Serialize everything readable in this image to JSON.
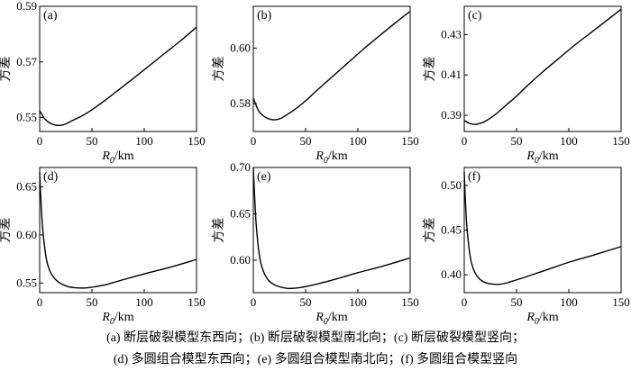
{
  "chart_data": [
    {
      "panel": "(a)",
      "type": "line",
      "ylabel": "方差",
      "xlabel": "R0/km",
      "xlabel_main": "R",
      "xlabel_sub": "0",
      "xlabel_unit": "/km",
      "xlim": [
        0,
        150
      ],
      "ylim": [
        0.545,
        0.59
      ],
      "xticks": [
        0,
        50,
        100,
        150
      ],
      "yticks": [
        0.55,
        0.57,
        0.59
      ],
      "yticklabels": [
        "0.55",
        "0.57",
        "0.59"
      ],
      "series": [
        {
          "x": [
            0,
            5,
            10,
            15,
            20,
            25,
            30,
            40,
            50,
            60,
            75,
            90,
            105,
            120,
            135,
            150
          ],
          "y": [
            0.5525,
            0.5495,
            0.548,
            0.5473,
            0.5472,
            0.5477,
            0.5487,
            0.5505,
            0.5528,
            0.5555,
            0.5598,
            0.5642,
            0.5687,
            0.5732,
            0.5777,
            0.5825
          ]
        }
      ]
    },
    {
      "panel": "(b)",
      "type": "line",
      "ylabel": "方差",
      "xlabel": "R0/km",
      "xlabel_main": "R",
      "xlabel_sub": "0",
      "xlabel_unit": "/km",
      "xlim": [
        0,
        150
      ],
      "ylim": [
        0.57,
        0.615
      ],
      "xticks": [
        0,
        50,
        100,
        150
      ],
      "yticks": [
        0.58,
        0.6
      ],
      "yticklabels": [
        "0.58",
        "0.60"
      ],
      "series": [
        {
          "x": [
            0,
            5,
            10,
            15,
            20,
            25,
            30,
            40,
            50,
            60,
            75,
            90,
            105,
            120,
            135,
            150
          ],
          "y": [
            0.582,
            0.5775,
            0.5755,
            0.5745,
            0.5742,
            0.5745,
            0.5755,
            0.578,
            0.581,
            0.5845,
            0.5895,
            0.5945,
            0.5995,
            0.6042,
            0.6088,
            0.6132
          ]
        }
      ]
    },
    {
      "panel": "(c)",
      "type": "line",
      "ylabel": "方差",
      "xlabel": "R0/km",
      "xlabel_main": "R",
      "xlabel_sub": "0",
      "xlabel_unit": "/km",
      "xlim": [
        0,
        150
      ],
      "ylim": [
        0.382,
        0.444
      ],
      "xticks": [
        0,
        50,
        100,
        150
      ],
      "yticks": [
        0.39,
        0.41,
        0.43
      ],
      "yticklabels": [
        "0.39",
        "0.41",
        "0.43"
      ],
      "series": [
        {
          "x": [
            0,
            5,
            10,
            15,
            20,
            30,
            40,
            50,
            60,
            75,
            90,
            105,
            120,
            135,
            150
          ],
          "y": [
            0.3875,
            0.386,
            0.3855,
            0.386,
            0.387,
            0.3905,
            0.395,
            0.3995,
            0.4045,
            0.4115,
            0.418,
            0.4245,
            0.4305,
            0.4365,
            0.4425
          ]
        }
      ]
    },
    {
      "panel": "(d)",
      "type": "line",
      "ylabel": "方差",
      "xlabel": "R0/km",
      "xlabel_main": "R",
      "xlabel_sub": "0",
      "xlabel_unit": "/km",
      "xlim": [
        0,
        150
      ],
      "ylim": [
        0.54,
        0.67
      ],
      "xticks": [
        0,
        50,
        100,
        150
      ],
      "yticks": [
        0.55,
        0.6,
        0.65
      ],
      "yticklabels": [
        "0.55",
        "0.60",
        "0.65"
      ],
      "series": [
        {
          "x": [
            0,
            1,
            2,
            3,
            5,
            7,
            10,
            14,
            18,
            22,
            28,
            35,
            45,
            60,
            80,
            100,
            125,
            150
          ],
          "y": [
            0.665,
            0.64,
            0.62,
            0.605,
            0.585,
            0.572,
            0.562,
            0.555,
            0.551,
            0.5485,
            0.546,
            0.545,
            0.545,
            0.5475,
            0.5535,
            0.5595,
            0.5665,
            0.5745
          ]
        }
      ]
    },
    {
      "panel": "(e)",
      "type": "line",
      "ylabel": "方差",
      "xlabel": "R0/km",
      "xlabel_main": "R",
      "xlabel_sub": "0",
      "xlabel_unit": "/km",
      "xlim": [
        0,
        150
      ],
      "ylim": [
        0.565,
        0.7
      ],
      "xticks": [
        0,
        50,
        100,
        150
      ],
      "yticks": [
        0.6,
        0.65,
        0.7
      ],
      "yticklabels": [
        "0.60",
        "0.65",
        "0.70"
      ],
      "series": [
        {
          "x": [
            0,
            1,
            2,
            3,
            5,
            7,
            10,
            14,
            18,
            22,
            28,
            35,
            45,
            60,
            80,
            100,
            125,
            150
          ],
          "y": [
            0.7,
            0.675,
            0.652,
            0.635,
            0.612,
            0.598,
            0.587,
            0.579,
            0.575,
            0.5725,
            0.5705,
            0.5695,
            0.5705,
            0.574,
            0.58,
            0.5865,
            0.594,
            0.6025
          ]
        }
      ]
    },
    {
      "panel": "(f)",
      "type": "line",
      "ylabel": "方差",
      "xlabel": "R0/km",
      "xlabel_main": "R",
      "xlabel_sub": "0",
      "xlabel_unit": "/km",
      "xlim": [
        0,
        150
      ],
      "ylim": [
        0.38,
        0.52
      ],
      "xticks": [
        0,
        50,
        100,
        150
      ],
      "yticks": [
        0.4,
        0.45,
        0.5
      ],
      "yticklabels": [
        "0.40",
        "0.45",
        "0.50"
      ],
      "series": [
        {
          "x": [
            0,
            1,
            2,
            3,
            5,
            7,
            10,
            14,
            18,
            22,
            28,
            35,
            45,
            60,
            80,
            100,
            125,
            150
          ],
          "y": [
            0.515,
            0.485,
            0.462,
            0.447,
            0.426,
            0.413,
            0.403,
            0.396,
            0.3925,
            0.3905,
            0.3895,
            0.3895,
            0.3925,
            0.398,
            0.406,
            0.414,
            0.4225,
            0.4315
          ]
        }
      ]
    }
  ],
  "caption": {
    "line1": "(a) 断层破裂模型东西向；(b) 断层破裂模型南北向；(c) 断层破裂模型竖向；",
    "line2": "(d) 多圆组合模型东西向；(e) 多圆组合模型南北向；(f) 多圆组合模型竖向"
  }
}
